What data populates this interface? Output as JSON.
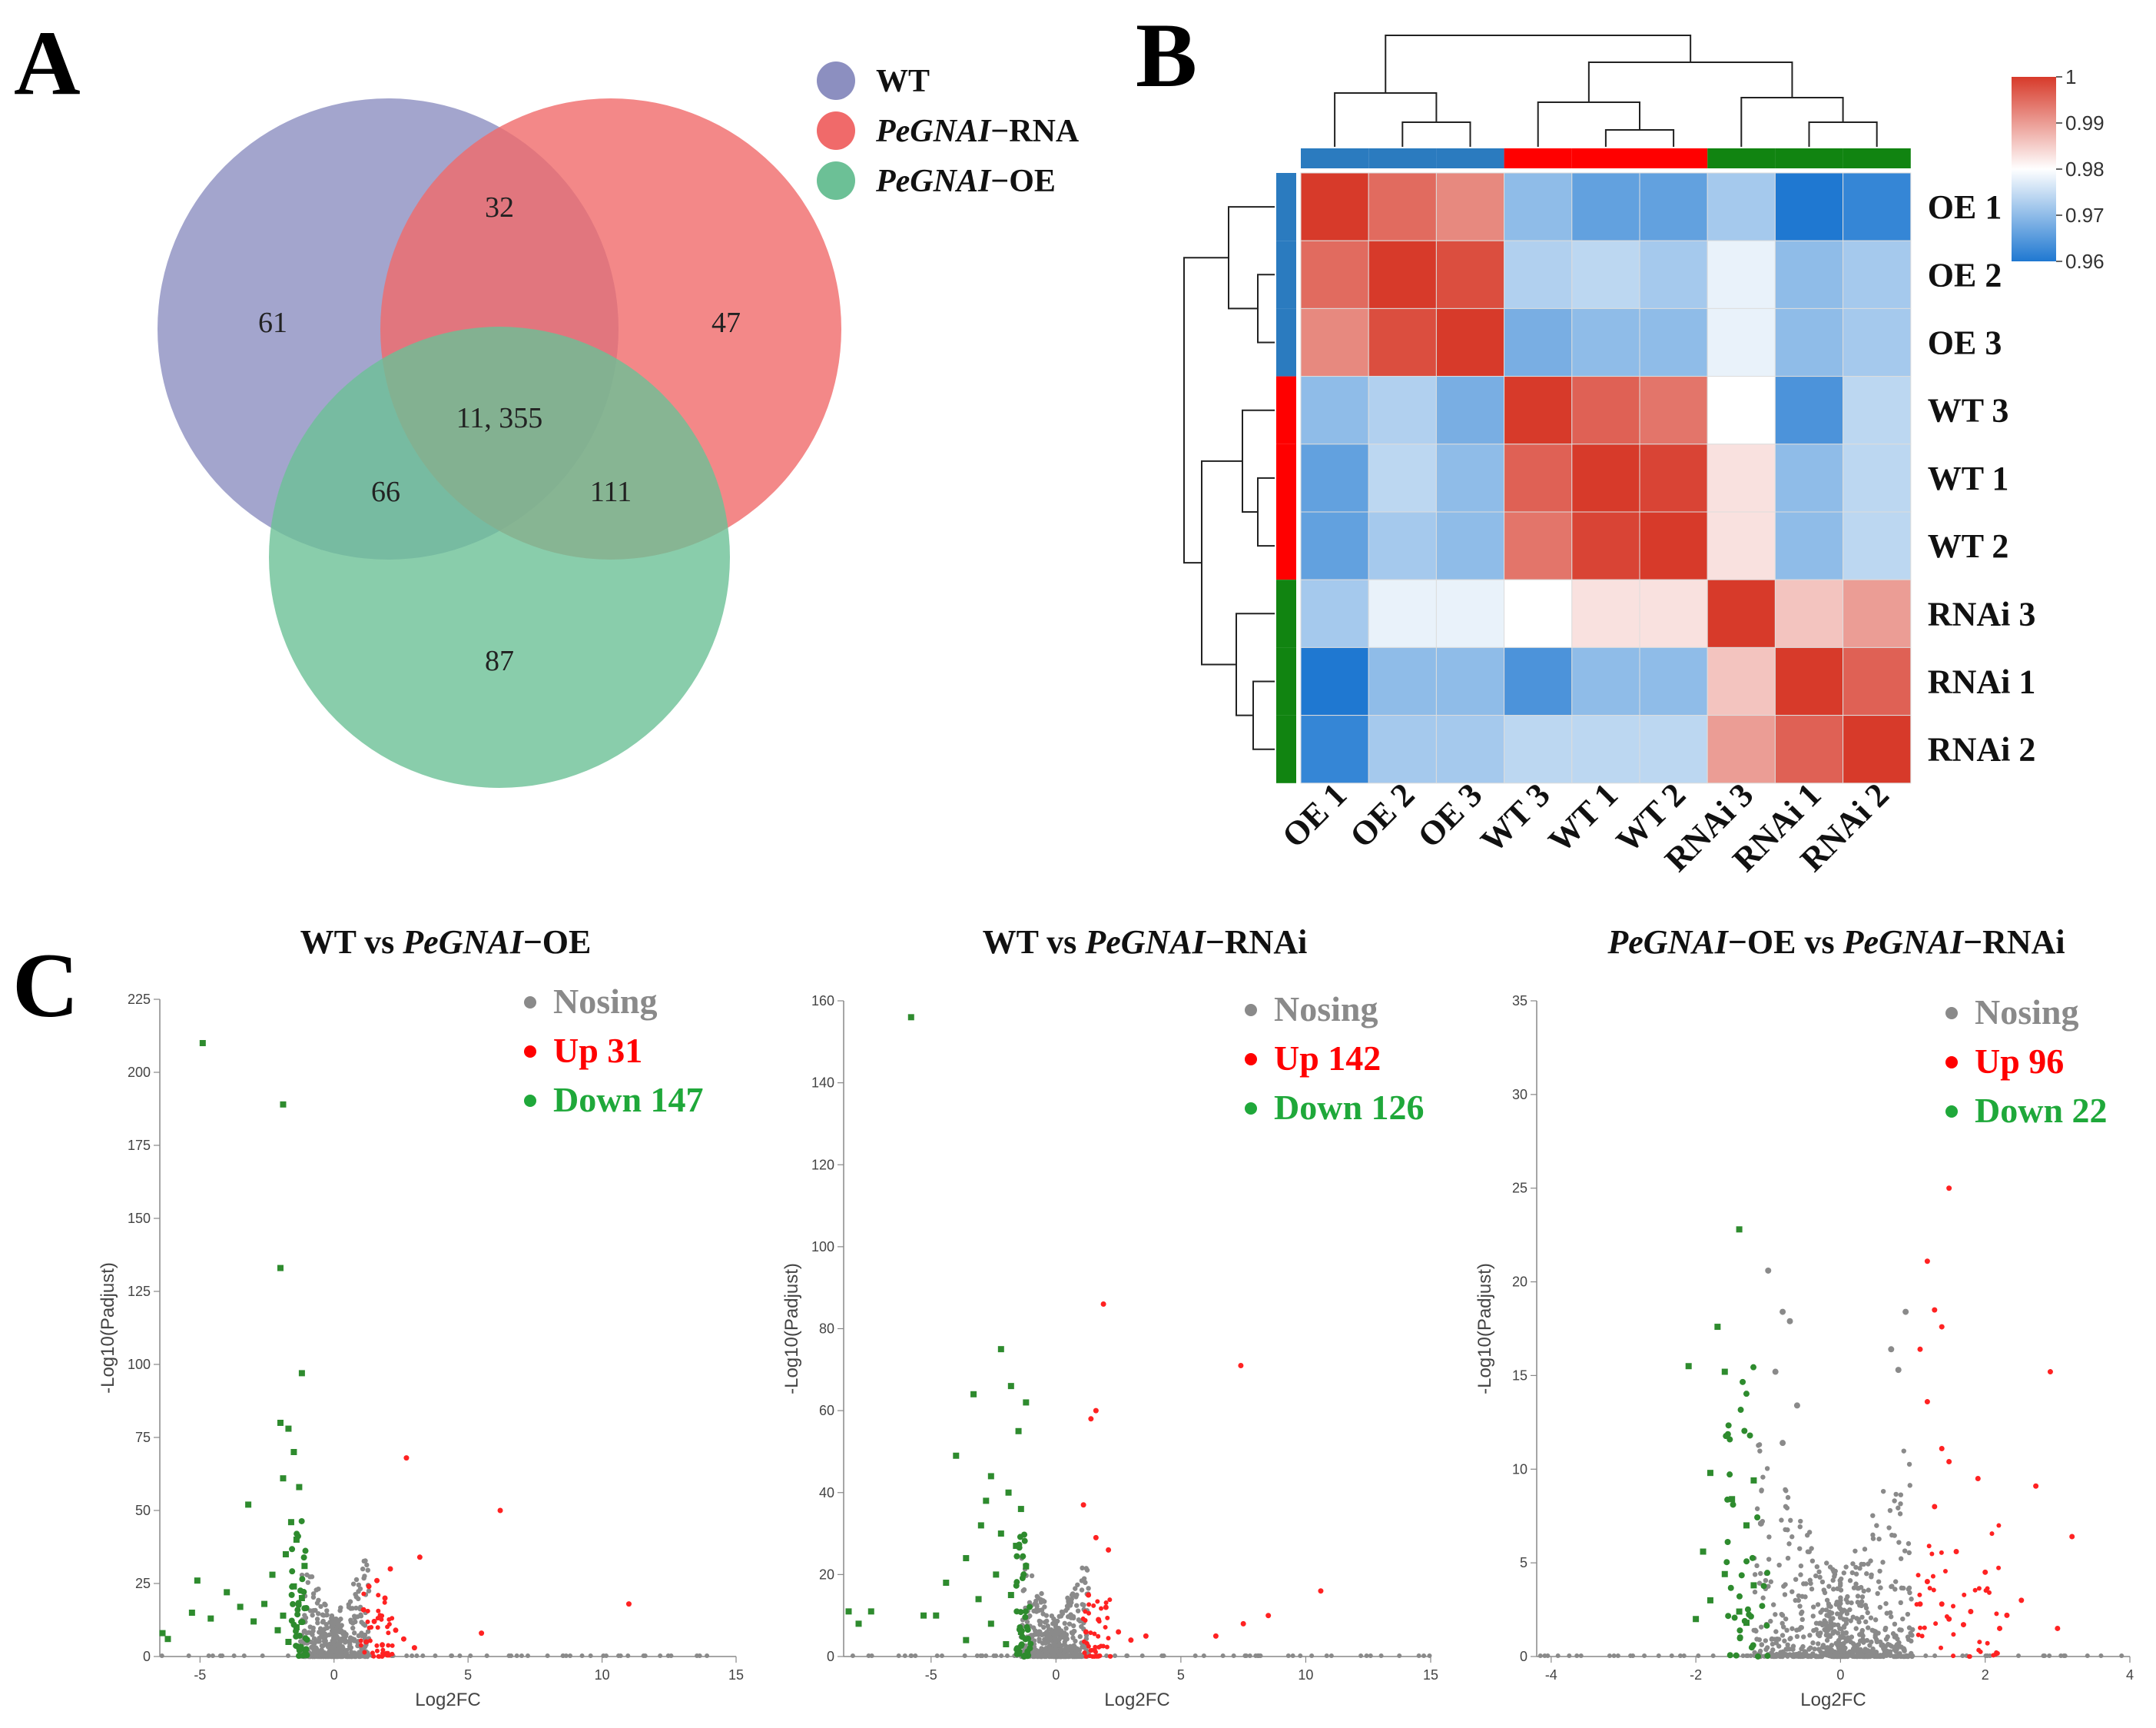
{
  "panels": {
    "a": "A",
    "b": "B",
    "c": "C"
  },
  "venn": {
    "legend": [
      {
        "italic": "",
        "label": "WT",
        "color": "#8c8fc0"
      },
      {
        "italic": "PeGNAI",
        "label": "−RNA",
        "color": "#f06a6a"
      },
      {
        "italic": "PeGNAI",
        "label": "−OE",
        "color": "#6cc096"
      }
    ],
    "regions": {
      "wt_only": "61",
      "wt_rna": "32",
      "rna_only": "47",
      "all": "11, 355",
      "wt_oe": "66",
      "rna_oe": "111",
      "oe_only": "87"
    }
  },
  "chart_data": [
    {
      "type": "heatmap",
      "title": "",
      "row_labels": [
        "OE 1",
        "OE 2",
        "OE 3",
        "WT 3",
        "WT 1",
        "WT 2",
        "RNAi 3",
        "RNAi 1",
        "RNAi 2"
      ],
      "col_labels": [
        "OE 1",
        "OE 2",
        "OE 3",
        "WT 3",
        "WT 1",
        "WT 2",
        "RNAi 3",
        "RNAi 1",
        "RNAi 2"
      ],
      "values": [
        [
          1.0,
          0.995,
          0.992,
          0.97,
          0.966,
          0.966,
          0.972,
          0.96,
          0.962
        ],
        [
          0.995,
          1.0,
          0.998,
          0.973,
          0.974,
          0.972,
          0.978,
          0.97,
          0.972
        ],
        [
          0.992,
          0.998,
          1.0,
          0.968,
          0.97,
          0.97,
          0.978,
          0.97,
          0.972
        ],
        [
          0.97,
          0.973,
          0.968,
          1.0,
          0.996,
          0.994,
          0.98,
          0.964,
          0.974
        ],
        [
          0.966,
          0.974,
          0.97,
          0.996,
          1.0,
          0.999,
          0.983,
          0.97,
          0.974
        ],
        [
          0.966,
          0.972,
          0.97,
          0.994,
          0.999,
          1.0,
          0.983,
          0.97,
          0.974
        ],
        [
          0.972,
          0.978,
          0.978,
          0.98,
          0.983,
          0.983,
          1.0,
          0.986,
          0.99
        ],
        [
          0.96,
          0.97,
          0.97,
          0.964,
          0.97,
          0.97,
          0.986,
          1.0,
          0.996
        ],
        [
          0.962,
          0.972,
          0.972,
          0.974,
          0.974,
          0.974,
          0.99,
          0.996,
          1.0
        ]
      ],
      "groups": [
        "OE",
        "OE",
        "OE",
        "WT",
        "WT",
        "WT",
        "RNAi",
        "RNAi",
        "RNAi"
      ],
      "group_colors": {
        "OE": "#2b7bbf",
        "WT": "#ff0000",
        "RNAi": "#118411"
      },
      "colorbar": {
        "min": 0.96,
        "max": 1,
        "ticks": [
          "1",
          "0.99",
          "0.98",
          "0.97",
          "0.96"
        ],
        "low": "#1f78d1",
        "mid": "#ffffff",
        "high": "#d73a2a"
      }
    },
    {
      "type": "scatter",
      "title_plain": "WT vs ",
      "title_italic": "PeGNAI",
      "title_tail": "−OE",
      "xlabel": "Log2FC",
      "ylabel": "-Log10(Padjust)",
      "xlim": [
        -6.5,
        15
      ],
      "ylim": [
        0,
        225
      ],
      "xticks": [
        -5,
        0,
        5,
        10,
        15
      ],
      "yticks": [
        0,
        25,
        50,
        75,
        100,
        125,
        150,
        175,
        200,
        225
      ],
      "legend": [
        {
          "label": "Nosing",
          "color": "#8a8a8a"
        },
        {
          "label": "Up 31",
          "color": "#ff0000"
        },
        {
          "label": "Down 147",
          "color": "#1fa83a"
        }
      ],
      "down_points": [
        [
          -4.9,
          210
        ],
        [
          -1.9,
          189
        ],
        [
          -2.0,
          133
        ],
        [
          -1.2,
          97
        ],
        [
          -2.0,
          80
        ],
        [
          -1.7,
          78
        ],
        [
          -1.5,
          70
        ],
        [
          -1.9,
          61
        ],
        [
          -1.3,
          58
        ],
        [
          -3.2,
          52
        ],
        [
          -1.6,
          46
        ],
        [
          -1.4,
          40
        ],
        [
          -1.8,
          35
        ],
        [
          -1.1,
          31
        ],
        [
          -2.3,
          28
        ],
        [
          -5.1,
          26
        ],
        [
          -1.5,
          24
        ],
        [
          -4.0,
          22
        ],
        [
          -2.6,
          18
        ],
        [
          -1.2,
          20
        ],
        [
          -5.3,
          15
        ],
        [
          -3.5,
          17
        ],
        [
          -4.6,
          13
        ],
        [
          -1.9,
          14
        ],
        [
          -6.4,
          8
        ],
        [
          -6.2,
          6
        ],
        [
          -1.4,
          10
        ],
        [
          -2.1,
          9
        ],
        [
          -3.0,
          12
        ],
        [
          -1.7,
          5
        ]
      ],
      "up_points": [
        [
          2.7,
          68
        ],
        [
          6.2,
          50
        ],
        [
          3.2,
          34
        ],
        [
          2.1,
          30
        ],
        [
          1.6,
          26
        ],
        [
          1.3,
          24
        ],
        [
          1.9,
          20
        ],
        [
          1.1,
          16
        ],
        [
          11.0,
          18
        ],
        [
          1.5,
          12
        ],
        [
          2.3,
          9
        ],
        [
          5.5,
          8
        ],
        [
          2.6,
          6
        ],
        [
          1.2,
          5
        ],
        [
          1.8,
          4
        ],
        [
          3.0,
          3
        ]
      ],
      "ns_cluster": {
        "down_spread": [
          -1.3,
          -0.2
        ],
        "up_spread": [
          0.2,
          1.3
        ],
        "ymax": 36
      }
    },
    {
      "type": "scatter",
      "title_plain": "WT vs ",
      "title_italic": "PeGNAI",
      "title_tail": "−RNAi",
      "xlabel": "Log2FC",
      "ylabel": "-Log10(Padjust)",
      "xlim": [
        -8.5,
        15
      ],
      "ylim": [
        0,
        160
      ],
      "xticks": [
        -5,
        0,
        5,
        10,
        15
      ],
      "yticks": [
        0,
        20,
        40,
        60,
        80,
        100,
        120,
        140,
        160
      ],
      "legend": [
        {
          "label": "Nosing",
          "color": "#8a8a8a"
        },
        {
          "label": "Up 142",
          "color": "#ff0000"
        },
        {
          "label": "Down 126",
          "color": "#1fa83a"
        }
      ],
      "down_points": [
        [
          -5.8,
          156
        ],
        [
          -2.2,
          75
        ],
        [
          -3.3,
          64
        ],
        [
          -1.8,
          66
        ],
        [
          -1.2,
          62
        ],
        [
          -1.5,
          55
        ],
        [
          -4.0,
          49
        ],
        [
          -2.6,
          44
        ],
        [
          -1.9,
          40
        ],
        [
          -2.8,
          38
        ],
        [
          -1.4,
          36
        ],
        [
          -3.0,
          32
        ],
        [
          -2.2,
          30
        ],
        [
          -1.6,
          27
        ],
        [
          -3.6,
          24
        ],
        [
          -1.2,
          22
        ],
        [
          -2.4,
          20
        ],
        [
          -4.4,
          18
        ],
        [
          -1.8,
          15
        ],
        [
          -3.1,
          14
        ],
        [
          -4.8,
          10
        ],
        [
          -5.3,
          10
        ],
        [
          -7.4,
          11
        ],
        [
          -7.9,
          8
        ],
        [
          -8.3,
          11
        ],
        [
          -2.6,
          8
        ],
        [
          -1.4,
          6
        ],
        [
          -3.6,
          4
        ],
        [
          -2.0,
          3
        ]
      ],
      "up_points": [
        [
          1.9,
          86
        ],
        [
          7.4,
          71
        ],
        [
          1.6,
          60
        ],
        [
          1.4,
          58
        ],
        [
          1.1,
          37
        ],
        [
          1.6,
          29
        ],
        [
          2.1,
          26
        ],
        [
          10.6,
          16
        ],
        [
          8.5,
          10
        ],
        [
          7.5,
          8
        ],
        [
          6.4,
          5
        ],
        [
          3.6,
          5
        ],
        [
          1.3,
          15
        ],
        [
          2.0,
          12
        ],
        [
          1.7,
          9
        ],
        [
          2.5,
          6
        ],
        [
          3.0,
          4
        ],
        [
          1.2,
          6
        ]
      ],
      "ns_cluster": {
        "down_spread": [
          -1.4,
          -0.2
        ],
        "up_spread": [
          0.2,
          1.3
        ],
        "ymax": 25
      }
    },
    {
      "type": "scatter",
      "title_plain": " vs ",
      "title_italic": "PeGNAI",
      "title_tail": "−OE",
      "title_tail2": "−RNAi",
      "xlabel": "Log2FC",
      "ylabel": "-Log10(Padjust)",
      "xlim": [
        -4.2,
        4
      ],
      "ylim": [
        0,
        35
      ],
      "xticks": [
        -4,
        -2,
        0,
        2,
        4
      ],
      "yticks": [
        0,
        5,
        10,
        15,
        20,
        25,
        30,
        35
      ],
      "legend": [
        {
          "label": "Nosing",
          "color": "#8a8a8a"
        },
        {
          "label": "Up 96",
          "color": "#ff0000"
        },
        {
          "label": "Down 22",
          "color": "#1fa83a"
        }
      ],
      "down_points": [
        [
          -1.4,
          22.8
        ],
        [
          -1.7,
          17.6
        ],
        [
          -1.6,
          15.2
        ],
        [
          -2.1,
          15.5
        ],
        [
          -1.8,
          9.8
        ],
        [
          -1.2,
          9.4
        ],
        [
          -1.5,
          8.4
        ],
        [
          -1.3,
          7.0
        ],
        [
          -1.9,
          5.6
        ],
        [
          -1.6,
          4.4
        ],
        [
          -1.2,
          3.8
        ],
        [
          -1.8,
          3.0
        ],
        [
          -1.4,
          2.4
        ],
        [
          -1.3,
          1.8
        ],
        [
          -2.0,
          2.0
        ]
      ],
      "up_points": [
        [
          1.5,
          25.0
        ],
        [
          1.2,
          21.1
        ],
        [
          1.3,
          18.5
        ],
        [
          1.4,
          17.6
        ],
        [
          1.1,
          16.4
        ],
        [
          2.9,
          15.2
        ],
        [
          1.2,
          13.6
        ],
        [
          1.4,
          11.1
        ],
        [
          1.5,
          10.4
        ],
        [
          1.9,
          9.5
        ],
        [
          2.7,
          9.1
        ],
        [
          1.3,
          8.0
        ],
        [
          3.2,
          6.4
        ],
        [
          1.6,
          5.6
        ],
        [
          2.0,
          4.5
        ],
        [
          1.2,
          4.0
        ],
        [
          2.5,
          3.0
        ],
        [
          1.4,
          2.8
        ],
        [
          1.8,
          2.4
        ],
        [
          3.0,
          1.5
        ],
        [
          2.2,
          1.5
        ],
        [
          1.5,
          2.0
        ],
        [
          1.1,
          2.8
        ],
        [
          1.7,
          1.7
        ],
        [
          2.3,
          2.2
        ]
      ],
      "ns_points": [
        [
          -1.0,
          20.6
        ],
        [
          -0.8,
          18.4
        ],
        [
          -0.7,
          17.9
        ],
        [
          -0.9,
          15.2
        ],
        [
          -0.6,
          13.4
        ],
        [
          0.9,
          18.4
        ],
        [
          0.7,
          16.4
        ],
        [
          0.8,
          15.3
        ],
        [
          -0.8,
          11.4
        ],
        [
          -1.1,
          7.1
        ]
      ],
      "ns_cluster": {
        "down_spread": [
          -1.2,
          -0.1
        ],
        "up_spread": [
          0.1,
          1.0
        ],
        "ymax": 12
      }
    }
  ]
}
